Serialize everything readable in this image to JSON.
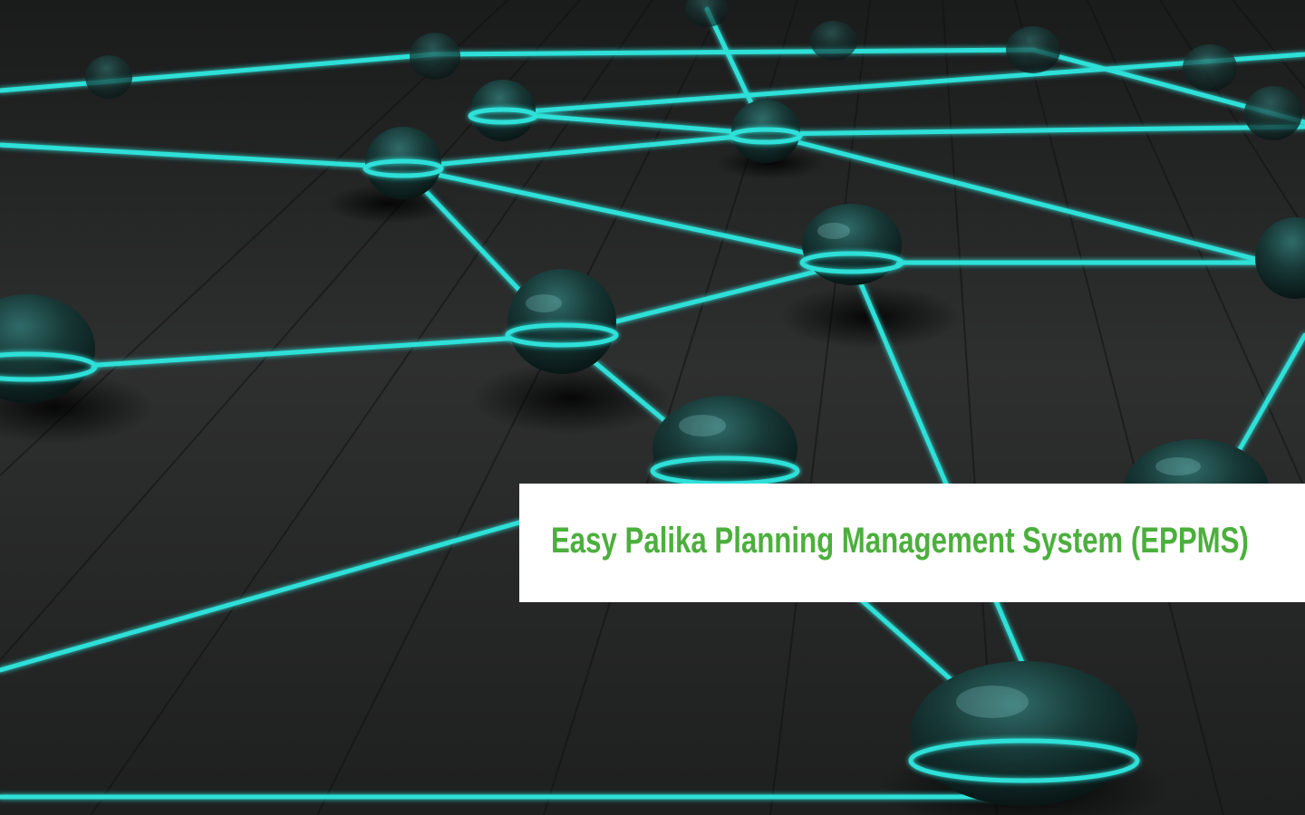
{
  "hero": {
    "title": "Easy Palika Planning Management System (EPPMS)",
    "background_image": "glowing-network-nodes",
    "title_color": "#4caf3d",
    "banner_color": "#ffffff",
    "link_color": "#2de0d8"
  }
}
